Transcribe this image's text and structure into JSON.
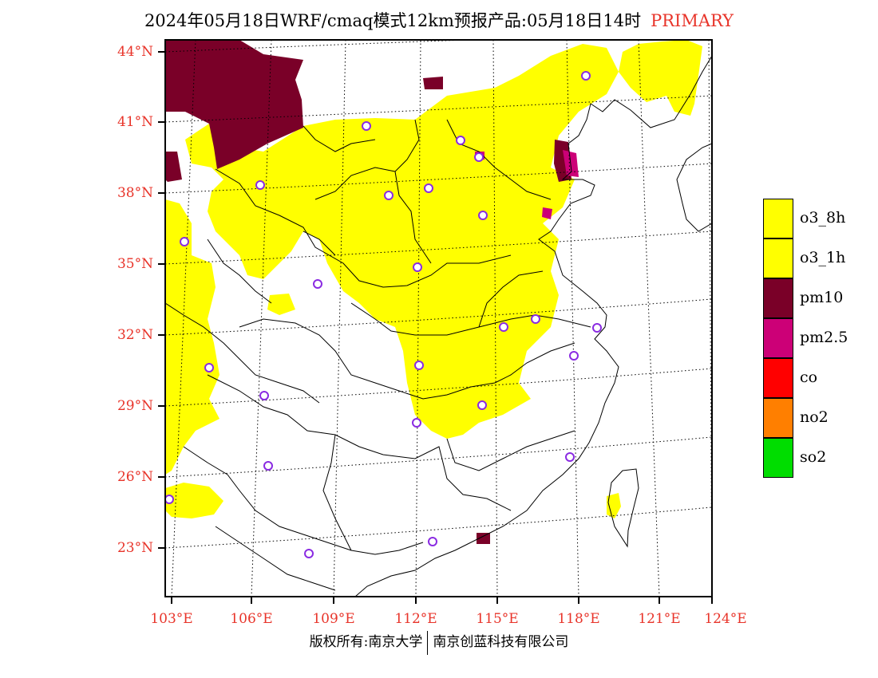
{
  "title": {
    "text": "2024年05月18日WRF/cmaq模式12km预报产品:05月18日14时",
    "tag": "PRIMARY"
  },
  "axes": {
    "lat_labels": [
      "44°N",
      "41°N",
      "38°N",
      "35°N",
      "32°N",
      "29°N",
      "26°N",
      "23°N"
    ],
    "lon_labels": [
      "103°E",
      "106°E",
      "109°E",
      "112°E",
      "115°E",
      "118°E",
      "121°E",
      "124°E"
    ]
  },
  "legend": [
    {
      "label": "o3_8h",
      "color": "#ffff00"
    },
    {
      "label": "o3_1h",
      "color": "#ffff00"
    },
    {
      "label": "pm10",
      "color": "#7a0028"
    },
    {
      "label": "pm2.5",
      "color": "#cc0077"
    },
    {
      "label": "co",
      "color": "#ff0000"
    },
    {
      "label": "no2",
      "color": "#ff7f00"
    },
    {
      "label": "so2",
      "color": "#00dd00"
    }
  ],
  "footer": {
    "left": "版权所有:南京大学",
    "right": "南京创蓝科技有限公司"
  },
  "colors": {
    "label_red": "#e8342a",
    "o3": "#ffff00",
    "pm10": "#7a0028",
    "pm25": "#cc0077",
    "station_marker": "#8a2be2"
  }
}
